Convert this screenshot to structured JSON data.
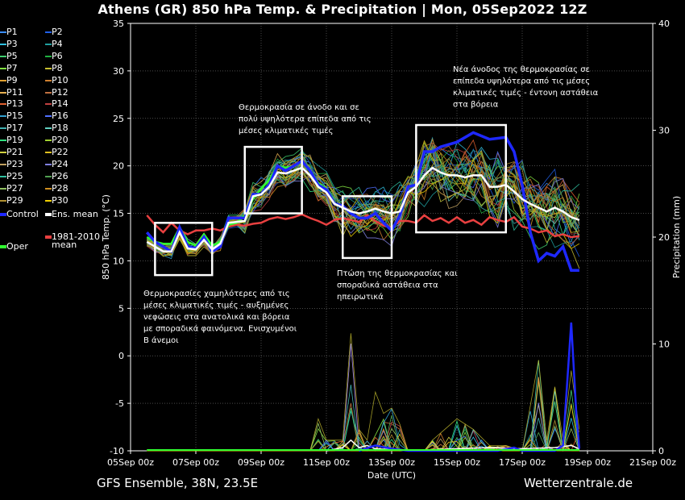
{
  "title": "Athens  (GR)  850 hPa Temp. & Precipitation | Mon, 05Sep2022 12Z",
  "footer": {
    "model": "GFS Ensemble, 38N, 23.5E",
    "site": "Wetterzentrale.de"
  },
  "colors": {
    "background": "#000000",
    "control": "#1e28ff",
    "ens_mean": "#ffffff",
    "climate_mean": "#e84040",
    "oper": "#30ff30",
    "members": [
      "#3a8cff",
      "#2060e8",
      "#30c0e0",
      "#20a0a0",
      "#40d070",
      "#20b040",
      "#80e040",
      "#c8c030",
      "#e0a030",
      "#d08030",
      "#e8b050",
      "#c07040",
      "#e06030",
      "#c04040",
      "#30a0d0",
      "#5070ff",
      "#40b0b0",
      "#60d0c0",
      "#30e080",
      "#a0d030",
      "#d0d040",
      "#e0c020",
      "#c0a060",
      "#8080e0",
      "#30c0a0",
      "#50a050",
      "#90c060",
      "#d09020",
      "#b09030",
      "#f0d000"
    ]
  },
  "legend": {
    "members": [
      "P1",
      "P2",
      "P3",
      "P4",
      "P5",
      "P6",
      "P7",
      "P8",
      "P9",
      "P10",
      "P11",
      "P12",
      "P13",
      "P14",
      "P15",
      "P16",
      "P17",
      "P18",
      "P19",
      "P20",
      "P21",
      "P22",
      "P23",
      "P24",
      "P25",
      "P26",
      "P27",
      "P28",
      "P29",
      "P30"
    ],
    "control": "Control",
    "ens_mean": "Ens. mean",
    "oper": "Oper",
    "climate_line1": "1981-2010",
    "climate_line2": "mean"
  },
  "annotations": [
    "Θερμοκρασίες χαμηλότερες από τις μέσες κλιματικές τιμές - αυξημένες νεφώσεις στα ανατολικά και βόρεια με σποραδικά φαινόμενα. Ενισχυμένοι Β άνεμοι",
    "Θερμοκρασία σε άνοδο και σε πολύ υψηλότερα επίπεδα από τις μέσες κλιματικές τιμές",
    "Πτώση της θερμοκρασίας και σποραδικά αστάθεια στα ηπειρωτικά",
    "Νέα άνοδος της θερμοκρασίας σε επίπεδα υψηλότερα από τις μέσες κλιματικές τιμές - έντονη αστάθεια στα βόρεια"
  ],
  "chart_data": {
    "type": "line",
    "xlabel": "Date (UTC)",
    "ylabel": "850 hPa Temp. (°C)",
    "y2label": "Precipitation (mm)",
    "x_ticks": [
      "05Sep 00z",
      "07Sep 00z",
      "09Sep 00z",
      "11Sep 00z",
      "13Sep 00z",
      "15Sep 00z",
      "17Sep 00z",
      "19Sep 00z",
      "21Sep 00z"
    ],
    "xlim_hours": [
      0,
      384
    ],
    "ylim": [
      -10,
      35
    ],
    "y_ticks": [
      -10,
      -5,
      0,
      5,
      10,
      15,
      20,
      25,
      30,
      35
    ],
    "y2lim": [
      0,
      40
    ],
    "y2_ticks": [
      0,
      10,
      20,
      30,
      40
    ],
    "grid": true,
    "temperature": {
      "control": [
        [
          12,
          13
        ],
        [
          18,
          12
        ],
        [
          24,
          11.5
        ],
        [
          30,
          11
        ],
        [
          36,
          13.5
        ],
        [
          42,
          11.5
        ],
        [
          48,
          11.3
        ],
        [
          54,
          12.5
        ],
        [
          60,
          11
        ],
        [
          66,
          11.5
        ],
        [
          72,
          14.5
        ],
        [
          84,
          14.5
        ],
        [
          90,
          17
        ],
        [
          96,
          17
        ],
        [
          102,
          18
        ],
        [
          108,
          20
        ],
        [
          114,
          19.5
        ],
        [
          120,
          20
        ],
        [
          126,
          20.5
        ],
        [
          132,
          19.5
        ],
        [
          138,
          18
        ],
        [
          144,
          17.5
        ],
        [
          150,
          16
        ],
        [
          156,
          15.8
        ],
        [
          162,
          15
        ],
        [
          168,
          14.5
        ],
        [
          174,
          14.5
        ],
        [
          180,
          15
        ],
        [
          186,
          14
        ],
        [
          192,
          13.2
        ],
        [
          198,
          14.8
        ],
        [
          204,
          17.8
        ],
        [
          210,
          18
        ],
        [
          216,
          21.5
        ],
        [
          222,
          21.5
        ],
        [
          228,
          22
        ],
        [
          240,
          22.5
        ],
        [
          252,
          23.5
        ],
        [
          264,
          22.8
        ],
        [
          276,
          23
        ],
        [
          282,
          21.5
        ],
        [
          288,
          18
        ],
        [
          294,
          13
        ],
        [
          300,
          10
        ],
        [
          306,
          10.8
        ],
        [
          312,
          10.5
        ],
        [
          318,
          11.5
        ],
        [
          324,
          9
        ],
        [
          330,
          9
        ]
      ],
      "ens_mean": [
        [
          12,
          12
        ],
        [
          18,
          11.5
        ],
        [
          24,
          11
        ],
        [
          30,
          11
        ],
        [
          36,
          13
        ],
        [
          42,
          11.3
        ],
        [
          48,
          11.2
        ],
        [
          54,
          12.2
        ],
        [
          60,
          11.2
        ],
        [
          66,
          11.8
        ],
        [
          72,
          14
        ],
        [
          84,
          14.2
        ],
        [
          90,
          16.8
        ],
        [
          96,
          17
        ],
        [
          102,
          17.8
        ],
        [
          108,
          19.3
        ],
        [
          114,
          19.2
        ],
        [
          120,
          19.5
        ],
        [
          126,
          19.8
        ],
        [
          132,
          19
        ],
        [
          138,
          17.8
        ],
        [
          144,
          17.2
        ],
        [
          150,
          16
        ],
        [
          156,
          15.6
        ],
        [
          162,
          15.2
        ],
        [
          168,
          15
        ],
        [
          174,
          15.2
        ],
        [
          180,
          15.5
        ],
        [
          186,
          15.2
        ],
        [
          192,
          15
        ],
        [
          198,
          15.2
        ],
        [
          204,
          17.2
        ],
        [
          210,
          17.8
        ],
        [
          216,
          19
        ],
        [
          222,
          19.8
        ],
        [
          228,
          19.3
        ],
        [
          234,
          19
        ],
        [
          240,
          19
        ],
        [
          246,
          18.8
        ],
        [
          252,
          19
        ],
        [
          258,
          19
        ],
        [
          264,
          17.8
        ],
        [
          270,
          17.8
        ],
        [
          276,
          18
        ],
        [
          282,
          17.3
        ],
        [
          288,
          16.5
        ],
        [
          294,
          16
        ],
        [
          300,
          15.6
        ],
        [
          306,
          15.2
        ],
        [
          312,
          15.6
        ],
        [
          318,
          15.2
        ],
        [
          324,
          14.6
        ],
        [
          330,
          14.3
        ]
      ],
      "climate_mean": [
        [
          12,
          14.8
        ],
        [
          18,
          13.8
        ],
        [
          24,
          13
        ],
        [
          30,
          14
        ],
        [
          36,
          13.2
        ],
        [
          42,
          12.8
        ],
        [
          48,
          13.2
        ],
        [
          54,
          13.2
        ],
        [
          60,
          13.4
        ],
        [
          66,
          13.2
        ],
        [
          72,
          13.6
        ],
        [
          78,
          13.8
        ],
        [
          84,
          13.7
        ],
        [
          90,
          13.9
        ],
        [
          96,
          14
        ],
        [
          102,
          14.4
        ],
        [
          108,
          14.6
        ],
        [
          114,
          14.4
        ],
        [
          120,
          14.6
        ],
        [
          126,
          14.9
        ],
        [
          132,
          14.5
        ],
        [
          138,
          14.2
        ],
        [
          144,
          13.8
        ],
        [
          150,
          14.3
        ],
        [
          156,
          14.5
        ],
        [
          162,
          14.3
        ],
        [
          168,
          14.1
        ],
        [
          174,
          14.8
        ],
        [
          180,
          14.2
        ],
        [
          186,
          13.7
        ],
        [
          192,
          13.5
        ],
        [
          198,
          14.2
        ],
        [
          204,
          14.2
        ],
        [
          210,
          14
        ],
        [
          216,
          14.8
        ],
        [
          222,
          14.2
        ],
        [
          228,
          14.5
        ],
        [
          234,
          14
        ],
        [
          240,
          14.6
        ],
        [
          246,
          14
        ],
        [
          252,
          14.3
        ],
        [
          258,
          13.8
        ],
        [
          264,
          14.6
        ],
        [
          270,
          14.3
        ],
        [
          276,
          14.1
        ],
        [
          282,
          14.6
        ],
        [
          288,
          13.6
        ],
        [
          294,
          13.4
        ],
        [
          300,
          13
        ],
        [
          306,
          13.2
        ],
        [
          312,
          12.6
        ],
        [
          318,
          12.8
        ],
        [
          324,
          12.5
        ],
        [
          330,
          12.6
        ]
      ],
      "oper": [
        [
          12,
          12.5
        ],
        [
          18,
          12
        ],
        [
          24,
          11.8
        ],
        [
          30,
          11.8
        ],
        [
          36,
          13.5
        ],
        [
          42,
          12
        ],
        [
          48,
          11.6
        ],
        [
          54,
          12.8
        ],
        [
          60,
          11.6
        ],
        [
          66,
          12
        ],
        [
          72,
          13.8
        ],
        [
          78,
          14
        ],
        [
          84,
          14.8
        ],
        [
          90,
          16.5
        ],
        [
          96,
          17.6
        ],
        [
          102,
          18.5
        ],
        [
          108,
          20
        ],
        [
          114,
          19.8
        ],
        [
          120,
          20
        ],
        [
          126,
          20.4
        ],
        [
          132,
          19.4
        ],
        [
          138,
          18.2
        ],
        [
          144,
          17.6
        ]
      ]
    },
    "precipitation": {
      "control": [
        [
          168,
          0
        ],
        [
          180,
          0.5
        ],
        [
          192,
          0.2
        ],
        [
          204,
          0
        ],
        [
          270,
          0
        ],
        [
          282,
          0.3
        ],
        [
          288,
          0
        ],
        [
          312,
          0
        ],
        [
          318,
          0.5
        ],
        [
          324,
          12
        ],
        [
          328,
          3
        ],
        [
          330,
          0.2
        ]
      ],
      "ens_mean": [
        [
          144,
          0
        ],
        [
          156,
          0.3
        ],
        [
          162,
          1
        ],
        [
          168,
          0.3
        ],
        [
          174,
          0.5
        ],
        [
          180,
          0.2
        ],
        [
          204,
          0
        ],
        [
          240,
          0.2
        ],
        [
          264,
          0.3
        ],
        [
          288,
          0.2
        ],
        [
          312,
          0.3
        ],
        [
          324,
          0.5
        ],
        [
          330,
          0.2
        ]
      ],
      "members_max": [
        [
          120,
          0
        ],
        [
          132,
          0
        ],
        [
          138,
          3
        ],
        [
          144,
          1
        ],
        [
          156,
          1
        ],
        [
          162,
          11
        ],
        [
          168,
          2
        ],
        [
          174,
          1
        ],
        [
          180,
          5.5
        ],
        [
          186,
          3.5
        ],
        [
          192,
          4
        ],
        [
          198,
          2.5
        ],
        [
          204,
          0
        ],
        [
          216,
          0
        ],
        [
          222,
          1
        ],
        [
          240,
          3
        ],
        [
          252,
          2
        ],
        [
          264,
          0.5
        ],
        [
          276,
          0.5
        ],
        [
          288,
          0
        ],
        [
          300,
          8.5
        ],
        [
          306,
          1
        ],
        [
          312,
          6
        ],
        [
          318,
          1
        ],
        [
          324,
          7.5
        ],
        [
          330,
          2
        ]
      ]
    },
    "boxes": [
      {
        "x": [
          18,
          60
        ],
        "y": [
          8.5,
          14
        ]
      },
      {
        "x": [
          84,
          126
        ],
        "y": [
          15,
          22
        ]
      },
      {
        "x": [
          156,
          192
        ],
        "y": [
          10.3,
          16.8
        ]
      },
      {
        "x": [
          210,
          276
        ],
        "y": [
          13,
          24.3
        ]
      }
    ]
  }
}
